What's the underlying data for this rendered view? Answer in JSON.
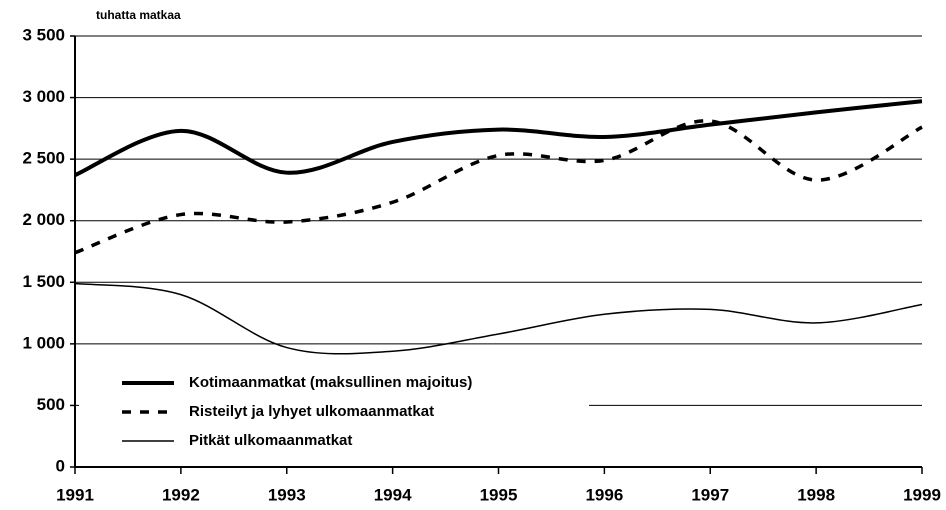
{
  "chart_data": {
    "type": "line",
    "y_label": "tuhatta matkaa",
    "x": [
      1991,
      1992,
      1993,
      1994,
      1995,
      1996,
      1997,
      1998,
      1999
    ],
    "xlim": [
      1991,
      1999
    ],
    "xticks": [
      1991,
      1992,
      1993,
      1994,
      1995,
      1996,
      1997,
      1998,
      1999
    ],
    "ylim": [
      0,
      3500
    ],
    "yticks": [
      0,
      500,
      {
        "value": 1000,
        "label": "1 000"
      },
      {
        "value": 1500,
        "label": "1 500"
      },
      {
        "value": 2000,
        "label": "2 000"
      },
      {
        "value": 2500,
        "label": "2 500"
      },
      {
        "value": 3000,
        "label": "3 000"
      },
      {
        "value": 3500,
        "label": "3 500"
      }
    ],
    "grid": true,
    "legend": "lower left",
    "series": [
      {
        "name": "Kotimaanmatkat (maksullinen majoitus)",
        "color": "#000000",
        "line_style": "solid",
        "line_width": 4,
        "values": [
          2370,
          2730,
          2390,
          2640,
          2740,
          2680,
          2780,
          2880,
          2970
        ]
      },
      {
        "name": "Risteilyt ja lyhyet ulkomaanmatkat",
        "color": "#000000",
        "line_style": "dashed",
        "line_width": 3.5,
        "values": [
          1740,
          2050,
          1990,
          2150,
          2530,
          2490,
          2810,
          2330,
          2760
        ]
      },
      {
        "name": "Pitkät ulkomaanmatkat",
        "color": "#000000",
        "line_style": "solid",
        "line_width": 1.5,
        "values": [
          1490,
          1400,
          970,
          940,
          1080,
          1240,
          1280,
          1170,
          1320
        ]
      }
    ]
  }
}
